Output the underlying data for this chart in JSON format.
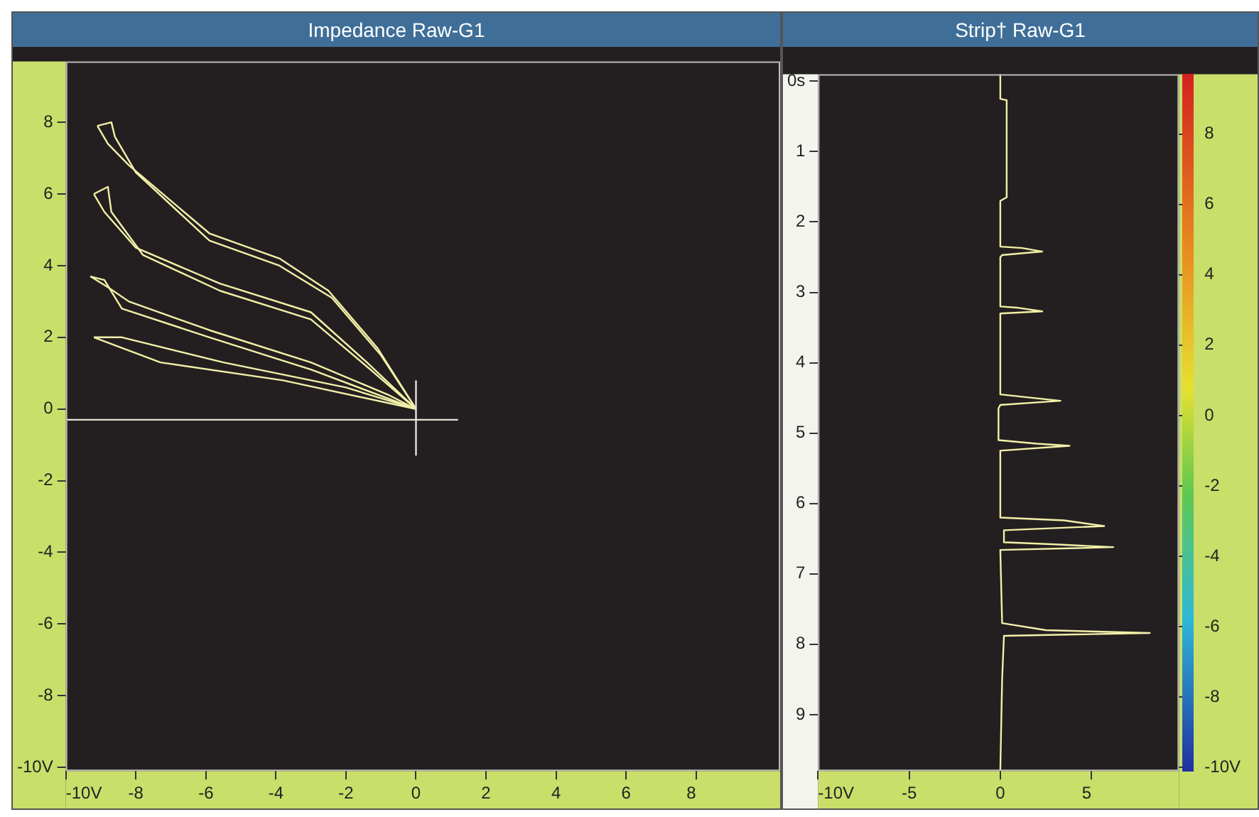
{
  "chart_data": [
    {
      "type": "line",
      "title": "Impedance Raw-G1",
      "xlim": [
        -10,
        10.4
      ],
      "xticks": [
        {
          "value": -10,
          "label": "-10V"
        },
        -8,
        -6,
        -4,
        -2,
        0,
        2,
        4,
        6,
        8
      ],
      "ylim": [
        -10.1,
        9.7
      ],
      "yticks": [
        {
          "value": -10,
          "label": "-10V"
        },
        -8,
        -6,
        -4,
        -2,
        0,
        2,
        4,
        6,
        8
      ],
      "series": [
        {
          "color": "#f2f0a8",
          "x": [
            0,
            -1.1,
            -2.5,
            -3.9,
            -5.9,
            -8.2,
            -8.8,
            -9.1
          ],
          "values": [
            0,
            1.7,
            3.3,
            4.2,
            4.9,
            6.8,
            7.4,
            7.9
          ]
        },
        {
          "color": "#f2f0a8",
          "x": [
            -9.1,
            -8.7,
            -8.6,
            -8.0,
            -5.9,
            -3.9,
            -2.4,
            -1.0,
            0
          ],
          "values": [
            7.9,
            8.0,
            7.6,
            6.6,
            4.7,
            4.0,
            3.1,
            1.5,
            0
          ]
        },
        {
          "color": "#f2f0a8",
          "x": [
            0,
            -1.4,
            -3.0,
            -5.6,
            -8.0,
            -8.9,
            -9.2
          ],
          "values": [
            0,
            1.3,
            2.7,
            3.5,
            4.5,
            5.5,
            6.0
          ]
        },
        {
          "color": "#f2f0a8",
          "x": [
            -9.2,
            -8.8,
            -8.7,
            -7.8,
            -5.6,
            -3.0,
            -1.3,
            0
          ],
          "values": [
            6.0,
            6.2,
            5.5,
            4.3,
            3.3,
            2.5,
            1.1,
            0
          ]
        },
        {
          "color": "#f2f0a8",
          "x": [
            0,
            -0.8,
            -3.0,
            -5.9,
            -8.2,
            -8.8,
            -9.3
          ],
          "values": [
            0,
            0.4,
            1.3,
            2.2,
            3.0,
            3.4,
            3.7
          ]
        },
        {
          "color": "#f2f0a8",
          "x": [
            -9.3,
            -8.9,
            -8.4,
            -5.9,
            -3.0,
            0
          ],
          "values": [
            3.7,
            3.6,
            2.8,
            2.0,
            1.1,
            0
          ]
        },
        {
          "color": "#f2f0a8",
          "x": [
            0,
            -3.8,
            -7.3,
            -9.2
          ],
          "values": [
            0,
            0.8,
            1.3,
            2.0
          ]
        },
        {
          "color": "#f2f0a8",
          "x": [
            -9.2,
            -8.4,
            -5.5,
            -2.0,
            0
          ],
          "values": [
            2.0,
            2.0,
            1.3,
            0.6,
            0
          ]
        },
        {
          "color": "#e4e4d8",
          "x": [
            -10,
            1.2
          ],
          "values": [
            -0.3,
            -0.3
          ]
        },
        {
          "color": "#e4e4d8",
          "x": [
            0,
            0
          ],
          "values": [
            -1.3,
            0.8
          ]
        }
      ]
    },
    {
      "type": "line",
      "title": "Strip† Raw-G1",
      "xlim": [
        -10,
        9.8
      ],
      "xticks": [
        {
          "value": -10,
          "label": "-10V"
        },
        -5,
        0,
        5
      ],
      "ylim": [
        9.8,
        -0.1
      ],
      "yticks": [
        {
          "value": 0,
          "label": "0s"
        },
        1,
        2,
        3,
        4,
        5,
        6,
        7,
        8,
        9
      ],
      "y2lim": [
        -10.1,
        9.7
      ],
      "y2ticks": [
        {
          "value": -10,
          "label": "-10V"
        },
        -8,
        -6,
        -4,
        -2,
        0,
        2,
        4,
        6,
        8
      ],
      "series": [
        {
          "color": "#f2f0a8",
          "x": [
            0,
            0,
            0.35,
            0.35,
            0,
            0,
            1.2,
            2.3,
            0.1,
            0,
            0,
            1.0,
            2.3,
            0,
            0,
            1.8,
            3.3,
            0,
            -0.1,
            -0.1,
            2.0,
            3.8,
            0,
            0,
            3.5,
            5.7,
            0.2,
            0.2,
            3.0,
            6.2,
            0,
            0.1,
            2.5,
            8.2,
            0.2,
            0.1,
            0
          ],
          "values": [
            -0.1,
            0.25,
            0.27,
            1.65,
            1.7,
            2.35,
            2.37,
            2.42,
            2.47,
            2.5,
            3.2,
            3.22,
            3.27,
            3.3,
            4.45,
            4.5,
            4.54,
            4.6,
            4.65,
            5.1,
            5.15,
            5.18,
            5.25,
            6.2,
            6.24,
            6.32,
            6.38,
            6.55,
            6.58,
            6.62,
            6.66,
            7.7,
            7.8,
            7.84,
            7.88,
            8.5,
            9.8
          ]
        }
      ]
    }
  ]
}
